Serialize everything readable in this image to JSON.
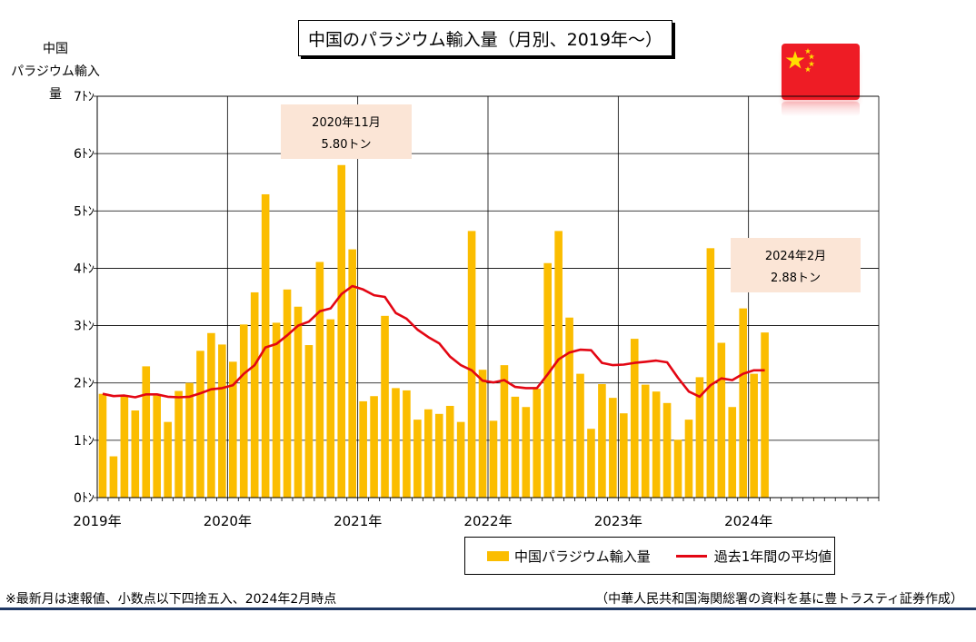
{
  "title": "中国のパラジウム輸入量（月別、2019年～）",
  "ylabel_line1": "中国",
  "ylabel_line2": "パラジウム輸入量",
  "legend": {
    "bar": "中国パラジウム輸入量",
    "line": "過去1年間の平均値"
  },
  "footnote": "※最新月は速報値、小数点以下四捨五入、2024年2月時点",
  "source": "（中華人民共和国海関総署の資料を基に豊トラスティ証券作成）",
  "colors": {
    "bar": "#fbbd00",
    "line": "#e30613",
    "callout": "#fbe5d6",
    "flag": "#ee1c25",
    "star": "#ffde00"
  },
  "flag_icon": "china-flag-icon",
  "callouts": [
    {
      "date": "2020年11月",
      "value": "5.80トン"
    },
    {
      "date": "2024年2月",
      "value": "2.88トン"
    }
  ],
  "chart_data": {
    "type": "bar",
    "ylim": [
      0,
      7
    ],
    "yticks": [
      "0ﾄﾝ",
      "1ﾄﾝ",
      "2ﾄﾝ",
      "3ﾄﾝ",
      "4ﾄﾝ",
      "5ﾄﾝ",
      "6ﾄﾝ",
      "7ﾄﾝ"
    ],
    "xlabels": [
      "2019年",
      "2020年",
      "2021年",
      "2022年",
      "2023年",
      "2024年"
    ],
    "months_total": 72,
    "start": "2019-01",
    "series": [
      {
        "name": "中国パラジウム輸入量",
        "type": "bar",
        "values": [
          1.81,
          0.72,
          1.79,
          1.52,
          2.29,
          1.78,
          1.32,
          1.86,
          2.0,
          2.56,
          2.87,
          2.67,
          2.37,
          3.02,
          3.58,
          5.29,
          3.05,
          3.63,
          3.33,
          2.66,
          4.11,
          3.11,
          5.8,
          4.33,
          1.68,
          1.77,
          3.17,
          1.91,
          1.87,
          1.36,
          1.54,
          1.46,
          1.6,
          1.32,
          4.65,
          2.23,
          1.34,
          2.31,
          1.76,
          1.58,
          1.9,
          4.09,
          4.65,
          3.14,
          2.16,
          1.2,
          1.98,
          1.74,
          1.47,
          2.77,
          1.97,
          1.85,
          1.65,
          1.01,
          1.36,
          2.1,
          4.35,
          2.7,
          1.58,
          3.3,
          2.16,
          2.88
        ]
      },
      {
        "name": "過去1年間の平均値",
        "type": "line",
        "values": [
          1.81,
          1.77,
          1.78,
          1.75,
          1.8,
          1.8,
          1.76,
          1.75,
          1.76,
          1.82,
          1.89,
          1.91,
          1.96,
          2.16,
          2.31,
          2.62,
          2.68,
          2.83,
          3.0,
          3.07,
          3.25,
          3.3,
          3.55,
          3.69,
          3.63,
          3.53,
          3.5,
          3.22,
          3.12,
          2.93,
          2.8,
          2.69,
          2.46,
          2.31,
          2.22,
          2.04,
          2.01,
          2.05,
          1.93,
          1.91,
          1.91,
          2.15,
          2.41,
          2.53,
          2.58,
          2.57,
          2.35,
          2.31,
          2.32,
          2.35,
          2.37,
          2.39,
          2.36,
          2.09,
          1.85,
          1.76,
          1.96,
          2.08,
          2.05,
          2.16,
          2.22,
          2.22
        ]
      }
    ]
  }
}
